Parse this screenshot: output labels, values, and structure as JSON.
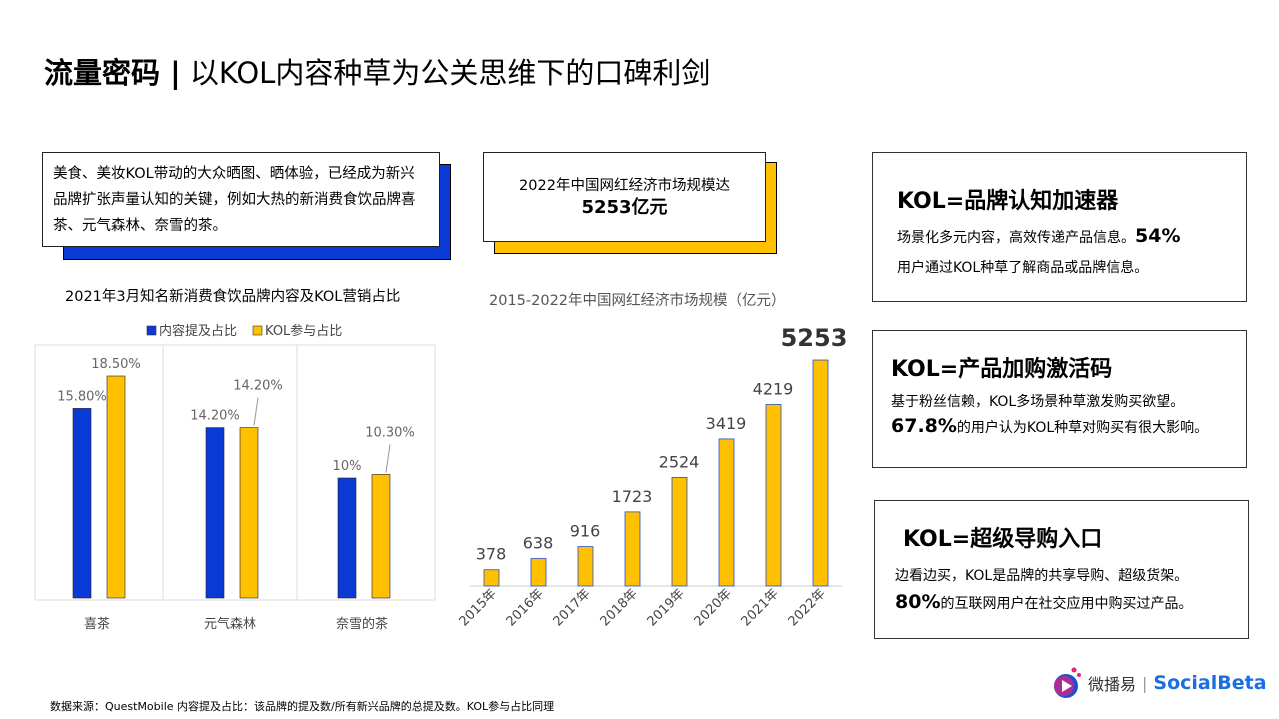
{
  "header": {
    "title_bold": "流量密码 |",
    "title_rest": " 以KOL内容种草为公关思维下的口碑利剑"
  },
  "intro": {
    "text": "美食、美妆KOL带动的大众晒图、晒体验，已经成为新兴品牌扩张声量认知的关键，例如大热的新消费食饮品牌喜茶、元气森林、奈雪的茶。"
  },
  "market": {
    "line1": "2022年中国网红经济市场规模达",
    "line2": "5253亿元"
  },
  "cards": [
    {
      "title": "KOL=品牌认知加速器",
      "line1": "场景化多元内容，高效传递产品信息。",
      "num": "54%",
      "line2": "用户通过KOL种草了解商品或品牌信息。"
    },
    {
      "title": "KOL=产品加购激活码",
      "line1": "基于粉丝信赖，KOL多场景种草激发购买欲望。",
      "num": "67.8%",
      "line2": "的用户认为KOL种草对购买有很大影响。"
    },
    {
      "title": "KOL=超级导购入口",
      "line1": "边看边买，KOL是品牌的共享导购、超级货架。",
      "num": "80%",
      "line2": "的互联网用户在社交应用中购买过产品。"
    }
  ],
  "footer": {
    "source": "数据来源：QuestMobile 内容提及占比：该品牌的提及数/所有新兴品牌的总提及数。KOL参与占比同理"
  },
  "logo": {
    "cn": "微播易",
    "en": "SocialBeta"
  },
  "colors": {
    "blue": "#0a3ad6",
    "yellow": "#ffc000"
  },
  "chart_data": [
    {
      "type": "bar",
      "title": "2021年3月知名新消费食饮品牌内容及KOL营销占比",
      "categories": [
        "喜茶",
        "元气森林",
        "奈雪的茶"
      ],
      "series": [
        {
          "name": "内容提及占比",
          "values": [
            15.8,
            14.2,
            10
          ],
          "labels": [
            "15.80%",
            "14.20%",
            "10%"
          ],
          "color": "#0a3ad6"
        },
        {
          "name": "KOL参与占比",
          "values": [
            18.5,
            14.2,
            10.3
          ],
          "labels": [
            "18.50%",
            "14.20%",
            "10.30%"
          ],
          "color": "#ffc000"
        }
      ],
      "ylim": [
        0,
        20
      ],
      "legend": "top"
    },
    {
      "type": "bar",
      "title": "2015-2022年中国网红经济市场规模（亿元）",
      "categories": [
        "2015年",
        "2016年",
        "2017年",
        "2018年",
        "2019年",
        "2020年",
        "2021年",
        "2022年"
      ],
      "values": [
        378,
        638,
        916,
        1723,
        2524,
        3419,
        4219,
        5253
      ],
      "color": "#ffc000",
      "ylim": [
        0,
        5300
      ]
    }
  ]
}
